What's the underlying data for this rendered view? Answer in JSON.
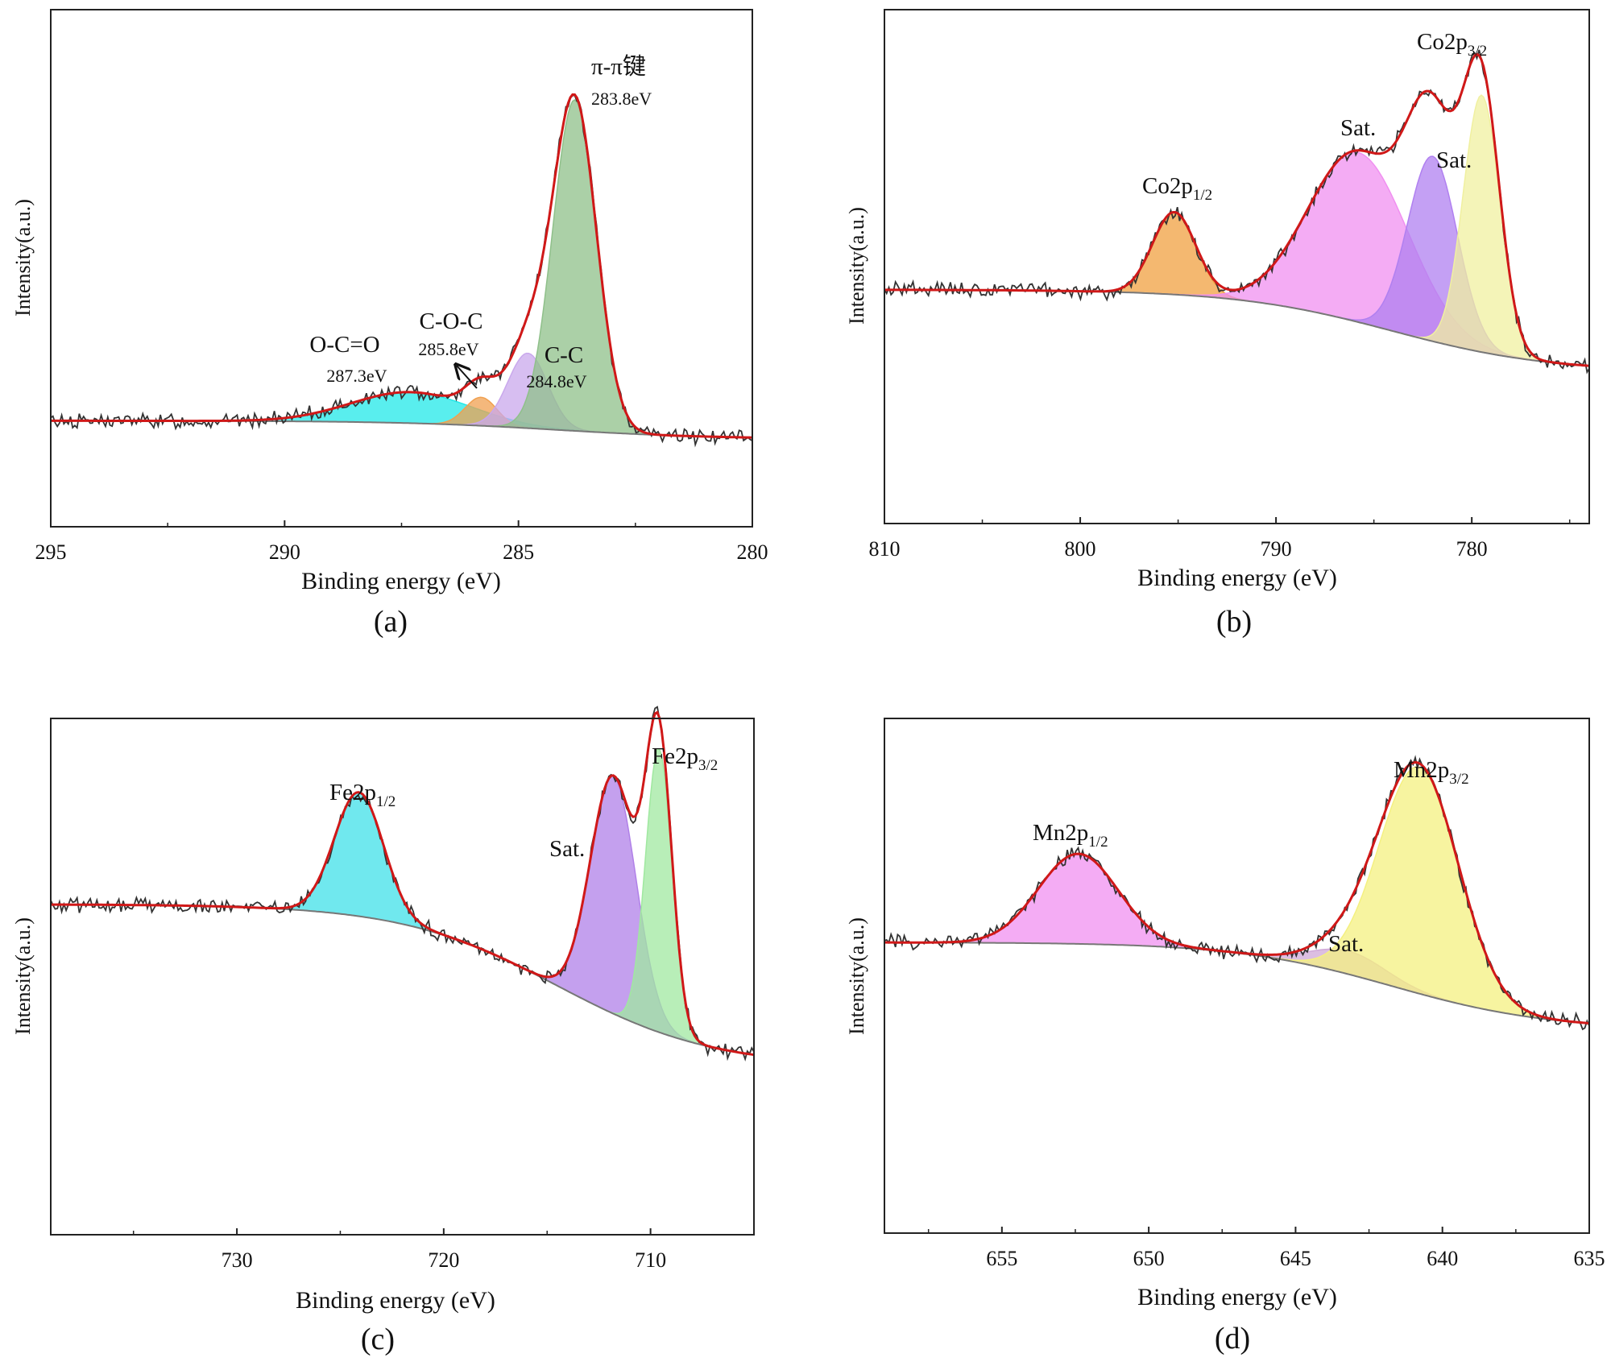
{
  "chart_data": [
    {
      "panel": "a",
      "type": "line",
      "caption": "(a)",
      "xlabel": "Binding energy (eV)",
      "ylabel": "Intensity(a.u.)",
      "xlim": [
        295,
        280
      ],
      "ylim": [
        0,
        1
      ],
      "x_ticks": [
        295,
        290,
        285,
        280
      ],
      "x_tick_labels": [
        "295",
        "290",
        "285",
        "280"
      ],
      "background": {
        "left": 0.205,
        "right": 0.17
      },
      "peaks": [
        {
          "name": "O-C=O",
          "center": 287.3,
          "fwhm": 3.0,
          "amplitude": 0.06,
          "color": "#22e8e8"
        },
        {
          "name": "C-O-C",
          "center": 285.8,
          "fwhm": 0.8,
          "amplitude": 0.055,
          "color": "#f0a050"
        },
        {
          "name": "C-C",
          "center": 284.8,
          "fwhm": 1.0,
          "amplitude": 0.145,
          "color": "#c9a8ec"
        },
        {
          "name": "π-π键",
          "center": 283.8,
          "fwhm": 1.1,
          "amplitude": 0.64,
          "color": "#8fc08a"
        }
      ],
      "annotations": [
        {
          "text": "π-π键",
          "value": "283.8eV"
        },
        {
          "text": "C-O-C",
          "value": "285.8eV"
        },
        {
          "text": "O-C=O",
          "value": "287.3eV"
        },
        {
          "text": "C-C",
          "value": "284.8eV"
        }
      ]
    },
    {
      "panel": "b",
      "type": "line",
      "caption": "(b)",
      "xlabel": "Binding energy (eV)",
      "ylabel": "Intensity(a.u.)",
      "xlim": [
        810,
        774
      ],
      "ylim": [
        0,
        1
      ],
      "x_ticks": [
        810,
        800,
        790,
        780
      ],
      "x_tick_labels": [
        "810",
        "800",
        "790",
        "780"
      ],
      "background": {
        "left": 0.455,
        "right": 0.295
      },
      "peaks": [
        {
          "name": "Co2p1/2",
          "center": 795.2,
          "fwhm": 2.6,
          "amplitude": 0.16,
          "color": "#f0a040"
        },
        {
          "name": "Sat.",
          "center": 785.8,
          "fwhm": 6.0,
          "amplitude": 0.33,
          "color": "#f090f0"
        },
        {
          "name": "Sat.",
          "center": 782.0,
          "fwhm": 3.0,
          "amplitude": 0.36,
          "color": "#b080f0"
        },
        {
          "name": "Co2p3/2",
          "center": 779.5,
          "fwhm": 2.2,
          "amplitude": 0.5,
          "color": "#f0f0a0"
        }
      ],
      "annotations": [
        {
          "text": "Co2p",
          "sub": "3/2"
        },
        {
          "text": "Sat."
        },
        {
          "text": "Co2p",
          "sub": "1/2"
        },
        {
          "text": "Sat."
        }
      ]
    },
    {
      "panel": "c",
      "type": "line",
      "caption": "(c)",
      "xlabel": "Binding energy (eV)",
      "ylabel": "Intensity(a.u.)",
      "xlim": [
        739,
        705
      ],
      "ylim": [
        0,
        1
      ],
      "x_ticks": [
        730,
        720,
        710
      ],
      "x_tick_labels": [
        "730",
        "720",
        "710"
      ],
      "background": {
        "left": 0.64,
        "right": 0.325
      },
      "peaks": [
        {
          "name": "Fe2p1/2",
          "center": 724.1,
          "fwhm": 2.8,
          "amplitude": 0.24,
          "color": "#40e0e8"
        },
        {
          "name": "Sat.",
          "center": 711.8,
          "fwhm": 2.6,
          "amplitude": 0.46,
          "color": "#b080e8"
        },
        {
          "name": "Fe2p3/2",
          "center": 709.6,
          "fwhm": 1.5,
          "amplitude": 0.55,
          "color": "#a0e8a0"
        }
      ],
      "annotations": [
        {
          "text": "Fe2p",
          "sub": "3/2"
        },
        {
          "text": "Fe2p",
          "sub": "1/2"
        },
        {
          "text": "Sat."
        }
      ]
    },
    {
      "panel": "d",
      "type": "line",
      "caption": "(d)",
      "xlabel": "Binding energy (eV)",
      "ylabel": "Intensity(a.u.)",
      "xlim": [
        659,
        635
      ],
      "ylim": [
        0,
        1
      ],
      "x_ticks": [
        655,
        650,
        645,
        640,
        635
      ],
      "x_tick_labels": [
        "655",
        "650",
        "645",
        "640",
        "635"
      ],
      "background": {
        "left": 0.565,
        "right": 0.395
      },
      "peaks": [
        {
          "name": "Mn2p1/2",
          "center": 652.4,
          "fwhm": 3.2,
          "amplitude": 0.175,
          "color": "#f090f0"
        },
        {
          "name": "Sat.",
          "center": 643.2,
          "fwhm": 3.0,
          "amplitude": 0.045,
          "color": "#d0a8d8"
        },
        {
          "name": "Mn2p3/2",
          "center": 640.8,
          "fwhm": 3.2,
          "amplitude": 0.44,
          "color": "#f4f080"
        }
      ],
      "annotations": [
        {
          "text": "Mn2p",
          "sub": "3/2"
        },
        {
          "text": "Mn2p",
          "sub": "1/2"
        },
        {
          "text": "Sat."
        }
      ]
    }
  ]
}
